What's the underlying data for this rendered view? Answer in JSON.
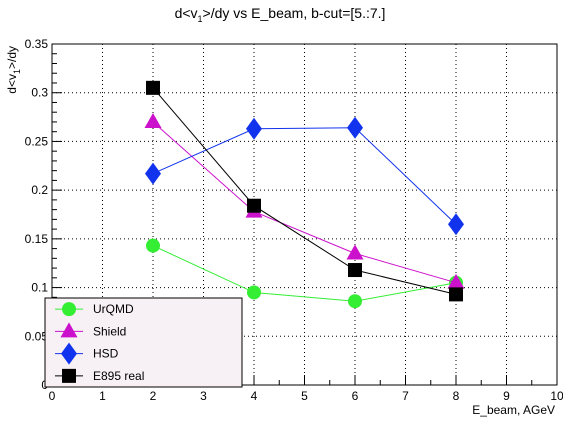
{
  "chart_data": {
    "type": "line",
    "title": "d<v₁>/dy vs E_beam, b-cut=[5.:7.]",
    "title_main": "d<v",
    "title_sub": "1",
    "title_rest": ">/dy vs E_beam, b-cut=[5.:7.]",
    "xlabel": "E_beam, AGeV",
    "ylabel": "d<v₁>/dy",
    "ylabel_main": "d<v",
    "ylabel_sub": "1",
    "ylabel_rest": ">/dy",
    "xlim": [
      0,
      10
    ],
    "ylim": [
      0,
      0.35
    ],
    "x_ticks": [
      "0",
      "1",
      "2",
      "3",
      "4",
      "5",
      "6",
      "7",
      "8",
      "9",
      "10"
    ],
    "y_ticks": [
      "0",
      "0.05",
      "0.1",
      "0.15",
      "0.2",
      "0.25",
      "0.3",
      "0.35"
    ],
    "grid": true,
    "legend_position": "bottom-left",
    "series": [
      {
        "name": "UrQMD",
        "marker": "circle",
        "color": "#33ee33",
        "x": [
          2,
          4,
          6,
          8
        ],
        "y": [
          0.143,
          0.095,
          0.086,
          0.105
        ]
      },
      {
        "name": "Shield",
        "marker": "triangle",
        "color": "#cc11cc",
        "x": [
          2,
          4,
          6,
          8
        ],
        "y": [
          0.27,
          0.178,
          0.135,
          0.105
        ]
      },
      {
        "name": "HSD",
        "marker": "diamond",
        "color": "#1133ee",
        "x": [
          2,
          4,
          6,
          8
        ],
        "y": [
          0.217,
          0.263,
          0.264,
          0.165
        ]
      },
      {
        "name": "E895 real",
        "marker": "square",
        "color": "#000000",
        "x": [
          2,
          4,
          6,
          8
        ],
        "y": [
          0.305,
          0.184,
          0.118,
          0.093
        ]
      }
    ]
  }
}
